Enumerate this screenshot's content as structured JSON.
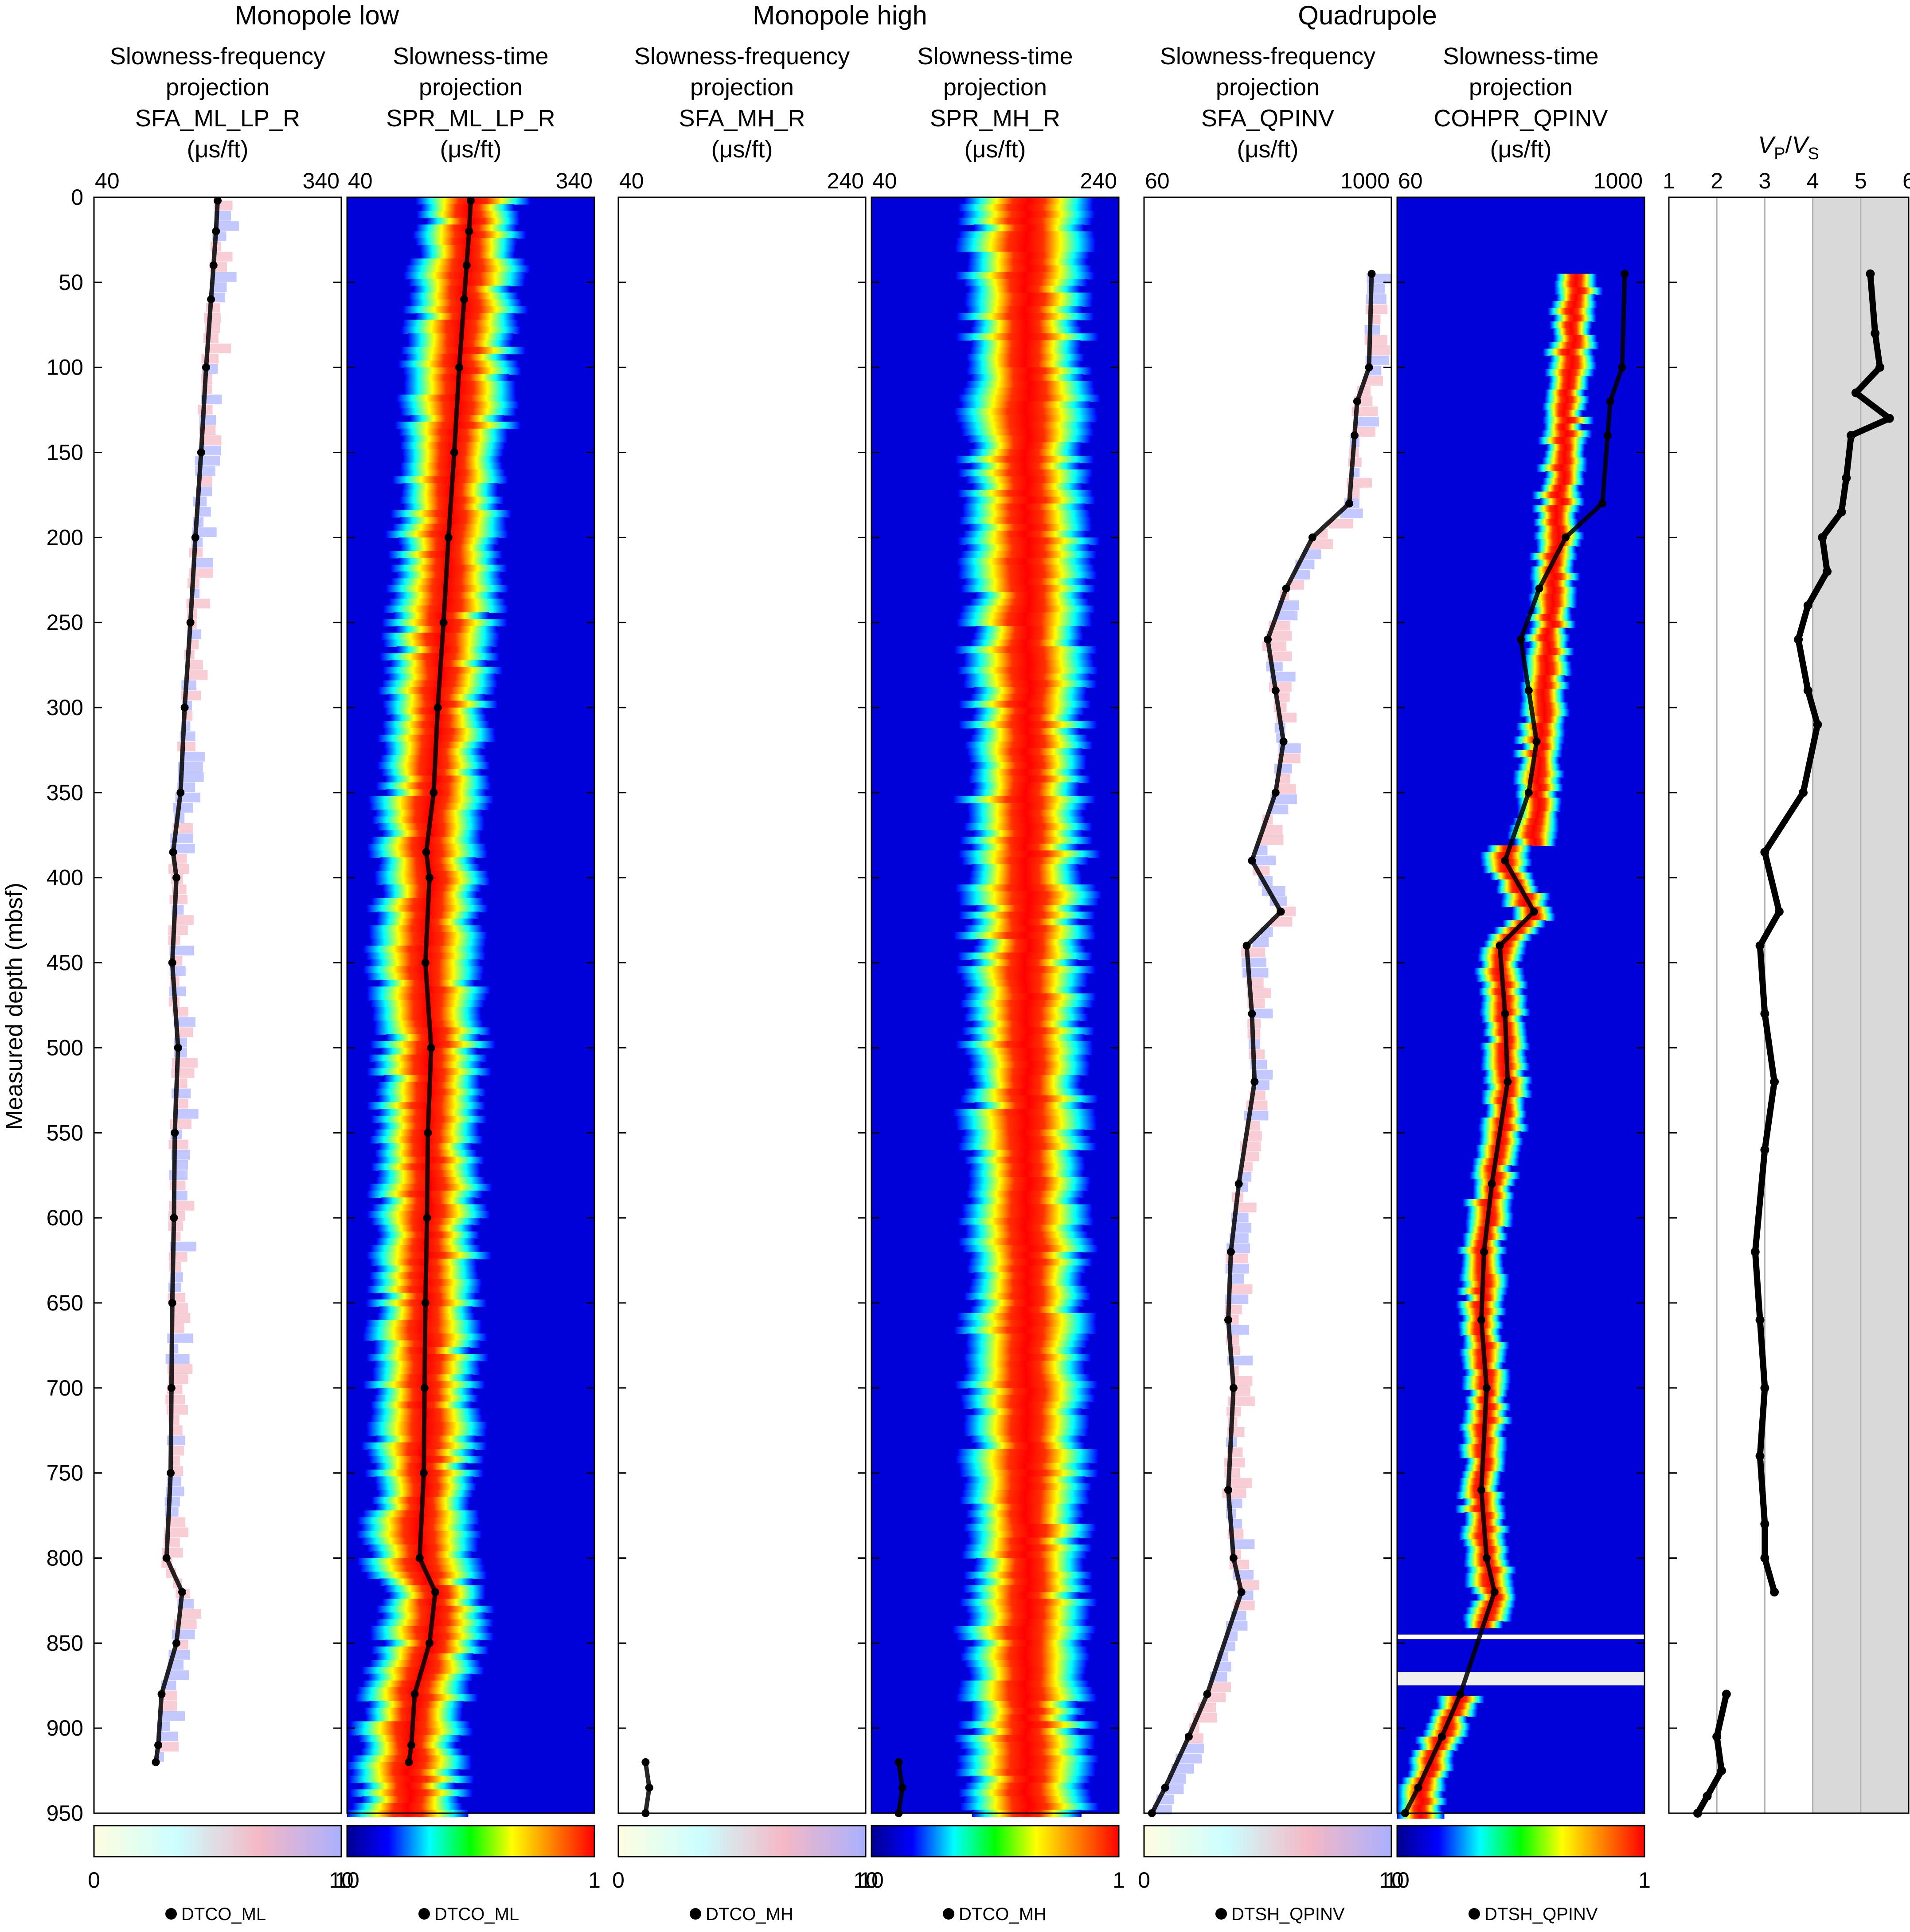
{
  "figure": {
    "y_axis_label": "Measured depth (mbsf)",
    "y_range": [
      0,
      950
    ],
    "y_ticks": [
      0,
      50,
      100,
      150,
      200,
      250,
      300,
      350,
      400,
      450,
      500,
      550,
      600,
      650,
      700,
      750,
      800,
      850,
      900,
      950
    ],
    "groups": [
      {
        "title": "Monopole low",
        "span": [
          0,
          1
        ]
      },
      {
        "title": "Monopole high",
        "span": [
          2,
          3
        ]
      },
      {
        "title": "Quadrupole",
        "span": [
          4,
          5
        ]
      }
    ],
    "colors": {
      "jet": [
        "#00008f",
        "#0000ff",
        "#00ffff",
        "#00ff00",
        "#ffff00",
        "#ff7f00",
        "#ff0000"
      ],
      "sfa": [
        "#fffde0",
        "#ccffff",
        "#f5b8c5",
        "#aab0ff"
      ],
      "curve": "#000000",
      "vpvs_shade": "#d9d9d9"
    }
  },
  "tracks": [
    {
      "id": "sfa-ml",
      "kind": "sfa",
      "title": [
        "Slowness-frequency",
        "projection",
        "SFA_ML_LP_R",
        "(μs/ft)"
      ],
      "xmin_label": "40",
      "xmax_label": "340",
      "cb_min": "0",
      "cb_max": "10",
      "legend": "DTCO_ML"
    },
    {
      "id": "spr-ml",
      "kind": "stc",
      "title": [
        "Slowness-time",
        "projection",
        "SPR_ML_LP_R",
        "(μs/ft)"
      ],
      "xmin_label": "40",
      "xmax_label": "340",
      "cb_min": "10",
      "cb_max": "1",
      "legend": "DTCO_ML"
    },
    {
      "id": "sfa-mh",
      "kind": "sfa",
      "title": [
        "Slowness-frequency",
        "projection",
        "SFA_MH_R",
        "(μs/ft)"
      ],
      "xmin_label": "40",
      "xmax_label": "240",
      "cb_min": "0",
      "cb_max": "10",
      "legend": "DTCO_MH"
    },
    {
      "id": "spr-mh",
      "kind": "stc",
      "title": [
        "Slowness-time",
        "projection",
        "SPR_MH_R",
        "(μs/ft)"
      ],
      "xmin_label": "40",
      "xmax_label": "240",
      "cb_min": "10",
      "cb_max": "1",
      "legend": "DTCO_MH"
    },
    {
      "id": "sfa-qp",
      "kind": "sfa",
      "title": [
        "Slowness-frequency",
        "projection",
        "SFA_QPINV",
        "(μs/ft)"
      ],
      "xmin_label": "60",
      "xmax_label": "1000",
      "cb_min": "0",
      "cb_max": "10",
      "legend": "DTSH_QPINV"
    },
    {
      "id": "coh-qp",
      "kind": "stc",
      "title": [
        "Slowness-time",
        "projection",
        "COHPR_QPINV",
        "(μs/ft)"
      ],
      "xmin_label": "60",
      "xmax_label": "1000",
      "cb_min": "10",
      "cb_max": "1",
      "legend": "DTSH_QPINV"
    }
  ],
  "vpvs_track": {
    "label_main": "V",
    "label_sub1": "P",
    "slash": "/",
    "label_sub2": "S",
    "ticks": [
      1,
      2,
      3,
      4,
      5,
      6
    ],
    "shade_from": 4
  },
  "chart_data": {
    "type": "line",
    "y_axis": "Measured depth (mbsf)",
    "depth_range": [
      0,
      950
    ],
    "series": [
      {
        "name": "DTCO_ML",
        "x_unit": "μs/ft",
        "x_range": [
          40,
          340
        ],
        "depth": [
          2,
          20,
          40,
          60,
          100,
          150,
          200,
          250,
          300,
          350,
          385,
          400,
          450,
          500,
          550,
          600,
          650,
          700,
          750,
          800,
          820,
          850,
          880,
          910,
          920
        ],
        "value": [
          190,
          188,
          185,
          182,
          176,
          170,
          163,
          157,
          150,
          145,
          136,
          140,
          135,
          142,
          138,
          137,
          135,
          134,
          133,
          128,
          147,
          140,
          122,
          118,
          115
        ]
      },
      {
        "name": "DTCO_MH",
        "x_unit": "μs/ft",
        "x_range": [
          40,
          240
        ],
        "depth": [
          920,
          935,
          950
        ],
        "value": [
          62,
          65,
          62
        ]
      },
      {
        "name": "DTSH_QPINV",
        "x_unit": "μs/ft",
        "x_range": [
          60,
          1000
        ],
        "depth": [
          45,
          100,
          120,
          140,
          180,
          200,
          230,
          260,
          290,
          320,
          350,
          390,
          420,
          440,
          480,
          520,
          580,
          620,
          660,
          700,
          760,
          800,
          820,
          880,
          905,
          935,
          950
        ],
        "value": [
          925,
          915,
          870,
          860,
          840,
          700,
          600,
          530,
          560,
          590,
          560,
          470,
          580,
          450,
          470,
          480,
          420,
          390,
          380,
          400,
          380,
          400,
          430,
          300,
          230,
          140,
          90
        ]
      },
      {
        "name": "VP/VS",
        "x_unit": "ratio",
        "x_range": [
          1,
          6
        ],
        "depth": [
          45,
          80,
          100,
          115,
          130,
          140,
          165,
          185,
          200,
          220,
          240,
          260,
          290,
          310,
          350,
          385,
          420,
          440,
          480,
          520,
          560,
          620,
          660,
          700,
          740,
          780,
          800,
          820,
          880,
          905,
          925,
          940,
          950
        ],
        "value": [
          5.2,
          5.3,
          5.4,
          4.9,
          5.6,
          4.8,
          4.7,
          4.6,
          4.2,
          4.3,
          3.9,
          3.7,
          3.9,
          4.1,
          3.8,
          3.0,
          3.3,
          2.9,
          3.0,
          3.2,
          3.0,
          2.8,
          2.9,
          3.0,
          2.9,
          3.0,
          3.0,
          3.2,
          2.2,
          2.0,
          2.1,
          1.8,
          1.6
        ]
      }
    ]
  }
}
